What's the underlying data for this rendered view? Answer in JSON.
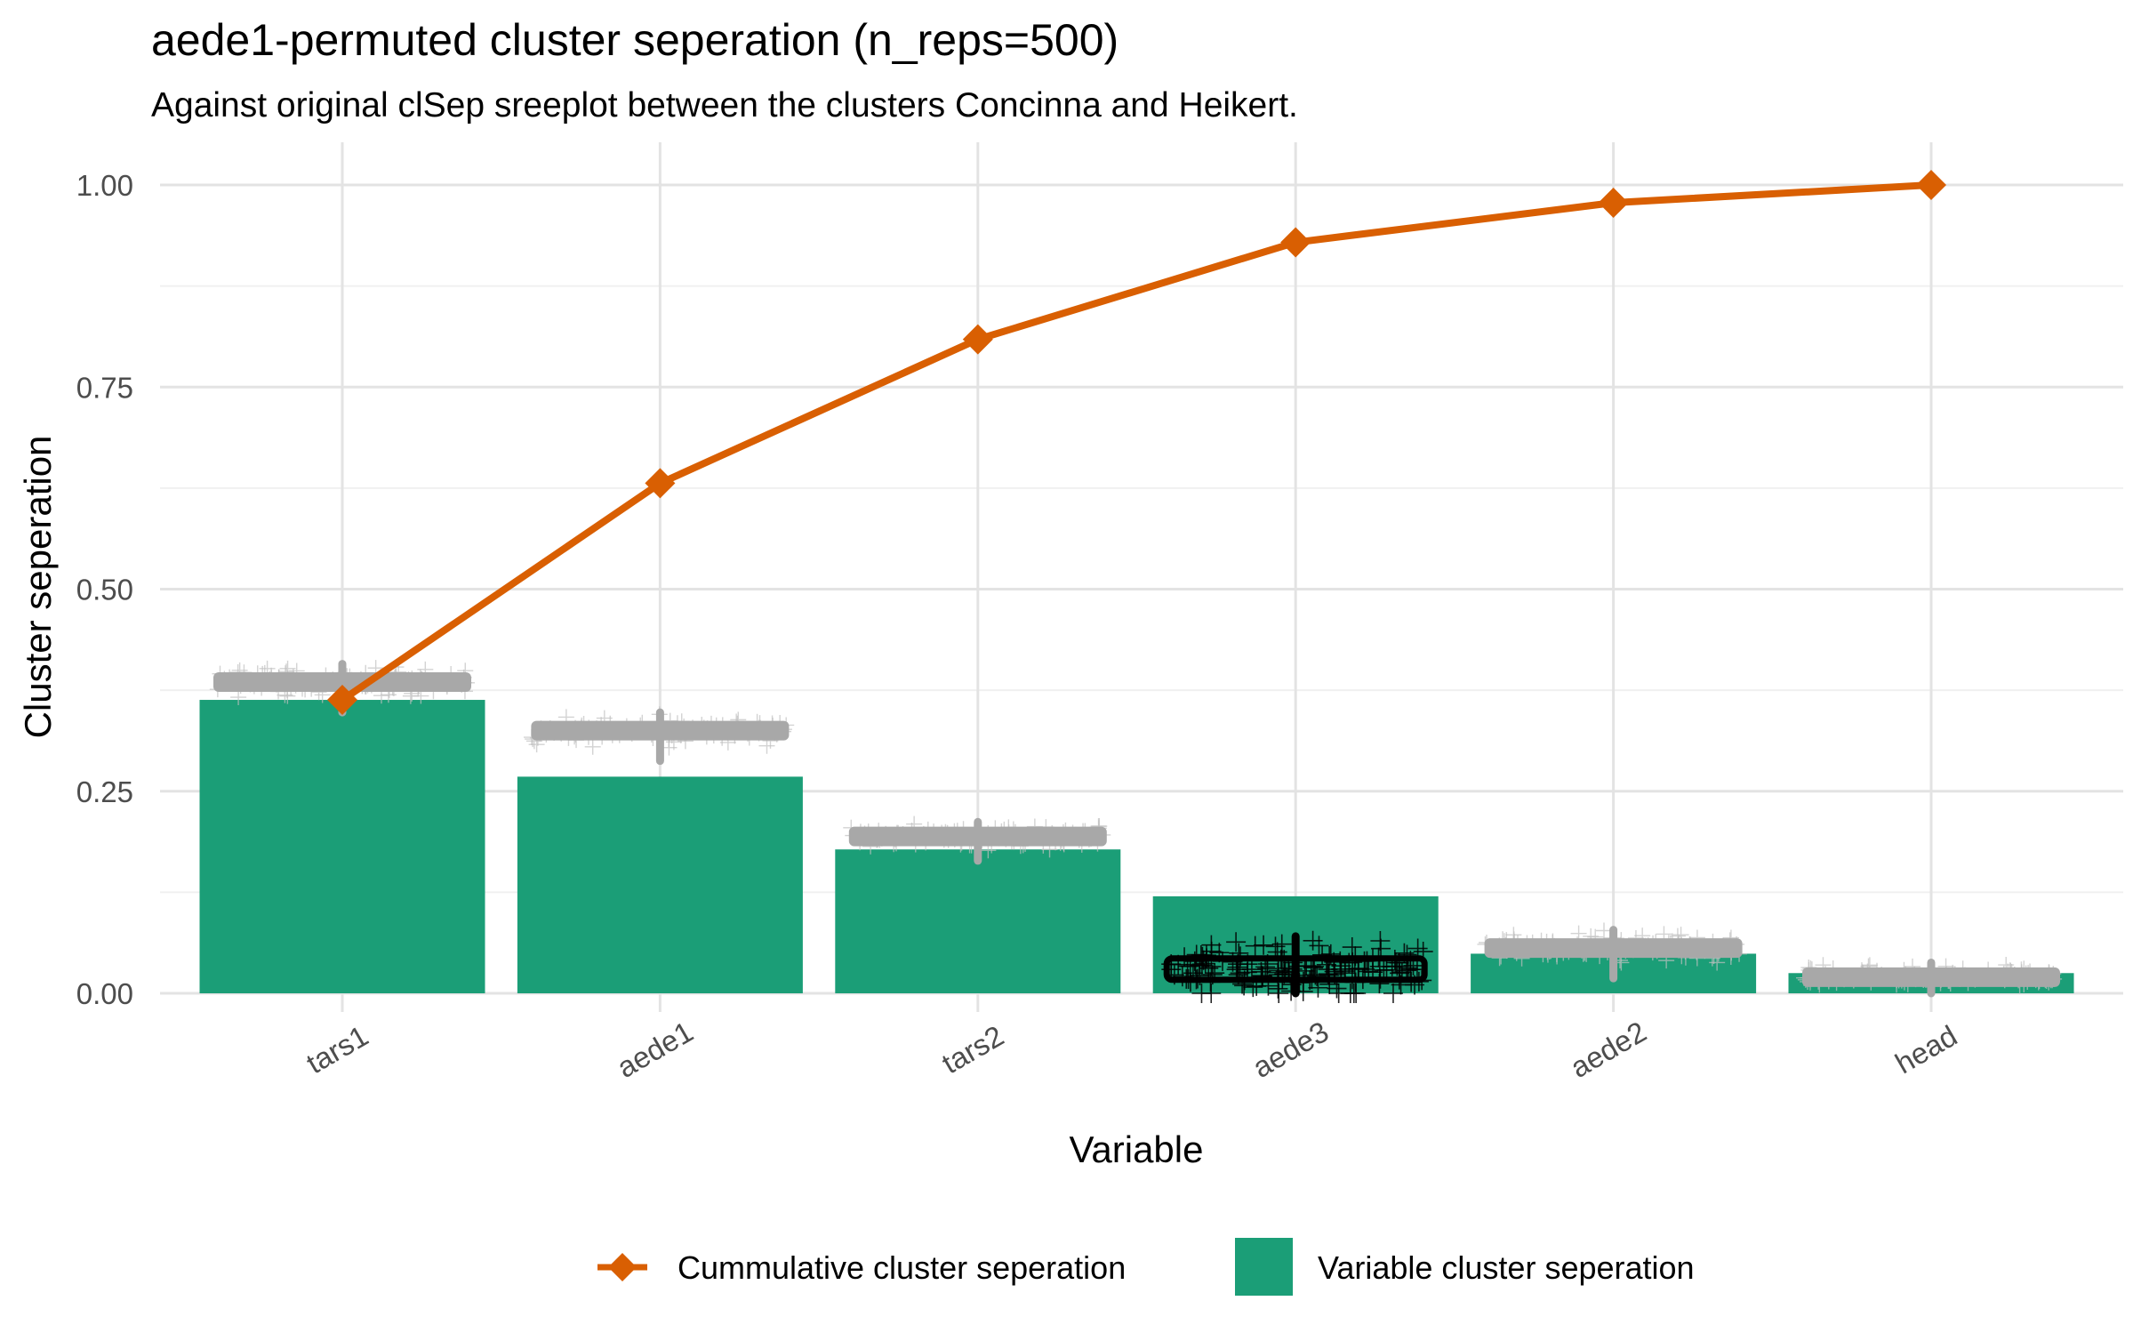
{
  "chart_data": {
    "type": "bar",
    "title": "aede1-permuted cluster seperation (n_reps=500)",
    "subtitle": "Against original clSep sreeplot between the clusters Concinna  and Heikert.",
    "xlabel": "Variable",
    "ylabel": "Cluster seperation",
    "ylim": [
      0,
      1.07
    ],
    "yticks": [
      0,
      0.25,
      0.5,
      0.75,
      1.0
    ],
    "ytick_labels": [
      "0.00",
      "0.25",
      "0.50",
      "0.75",
      "1.00"
    ],
    "grid": true,
    "legend_position": "bottom",
    "categories": [
      "tars1",
      "aede1",
      "tars2",
      "aede3",
      "aede2",
      "head"
    ],
    "series": [
      {
        "name": "Variable cluster seperation",
        "type": "bar",
        "color": "#1b9e77",
        "values": [
          0.363,
          0.268,
          0.178,
          0.12,
          0.049,
          0.025
        ]
      },
      {
        "name": "Cummulative cluster seperation",
        "type": "line",
        "color": "#d95f02",
        "marker": "diamond",
        "values": [
          0.363,
          0.631,
          0.809,
          0.929,
          0.978,
          1.0
        ]
      }
    ],
    "permutation_overlay": {
      "marker": "cross",
      "n_reps": 500,
      "median_values": [
        0.385,
        0.325,
        0.194,
        0.03,
        0.056,
        0.02
      ],
      "spread": [
        0.025,
        0.025,
        0.02,
        0.045,
        0.025,
        0.02
      ],
      "colors": [
        "#c0c0c0",
        "#c0c0c0",
        "#c0c0c0",
        "#000000",
        "#c0c0c0",
        "#c0c0c0"
      ],
      "median_bar_colors": [
        "#a8a8a8",
        "#a8a8a8",
        "#a8a8a8",
        "#000000",
        "#a8a8a8",
        "#a8a8a8"
      ]
    },
    "legend": {
      "items": [
        {
          "label": "Cummulative cluster seperation",
          "symbol": "line-diamond",
          "color": "#d95f02"
        },
        {
          "label": "Variable cluster seperation",
          "symbol": "square",
          "color": "#1b9e77"
        }
      ]
    }
  }
}
